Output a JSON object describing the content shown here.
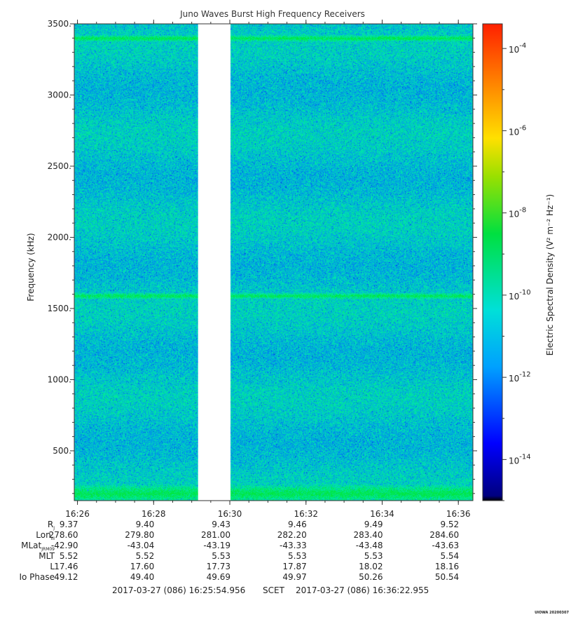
{
  "chart_data": {
    "type": "heatmap",
    "title": "Juno Waves Burst High Frequency Receivers",
    "ylabel": "Frequency (kHz)",
    "ylim": [
      150,
      3500
    ],
    "y_ticks": [
      500,
      1000,
      1500,
      2000,
      2500,
      3000,
      3500
    ],
    "y_tick_labels": [
      "500.",
      "1000.",
      "1500.",
      "2000.",
      "2500.",
      "3000.",
      "3500."
    ],
    "x_time_range": [
      "16:25:54.956",
      "16:36:22.955"
    ],
    "x_ticks": [
      "16:26",
      "16:28",
      "16:30",
      "16:32",
      "16:34",
      "16:36"
    ],
    "data_gap": {
      "start": "16:29:10",
      "end": "16:30:00"
    },
    "bands": [
      {
        "freq_khz": 3400,
        "note": "enhanced band"
      },
      {
        "freq_khz": 1590,
        "note": "enhanced band"
      },
      {
        "freq_khz": 200,
        "note": "enhanced band"
      }
    ],
    "colorbar": {
      "label": "Electric Spectral Density (V² m⁻² Hz⁻¹)",
      "scale": "log",
      "range_exp": [
        -15,
        -3.4
      ],
      "tick_exponents": [
        -14,
        -12,
        -10,
        -8,
        -6,
        -4
      ],
      "colormap": "rainbow",
      "typical_level_exp": -12
    }
  },
  "ephemeris": {
    "rows": [
      {
        "label": "R",
        "sub": "J",
        "values": [
          "9.37",
          "9.40",
          "9.43",
          "9.46",
          "9.49",
          "9.52"
        ]
      },
      {
        "label": "Lon",
        "sub": "III",
        "values": [
          "278.60",
          "279.80",
          "281.00",
          "282.20",
          "283.40",
          "284.60"
        ]
      },
      {
        "label": "MLat",
        "sub": "JRM09",
        "values": [
          "-42.90",
          "-43.04",
          "-43.19",
          "-43.33",
          "-43.48",
          "-43.63"
        ]
      },
      {
        "label": "MLT",
        "sub": "",
        "values": [
          "5.52",
          "5.52",
          "5.53",
          "5.53",
          "5.53",
          "5.54"
        ]
      },
      {
        "label": "L",
        "sub": "",
        "values": [
          "17.46",
          "17.60",
          "17.73",
          "17.87",
          "18.02",
          "18.16"
        ]
      },
      {
        "label": "Io Phase",
        "sub": "",
        "values": [
          "49.12",
          "49.40",
          "49.69",
          "49.97",
          "50.26",
          "50.54"
        ]
      }
    ]
  },
  "footer": {
    "start": "2017-03-27 (086) 16:25:54.956",
    "mid": "SCET",
    "end": "2017-03-27 (086) 16:36:22.955"
  },
  "stamp": "UIOWA 20200307"
}
